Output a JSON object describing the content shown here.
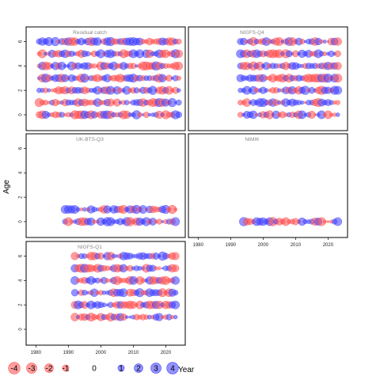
{
  "chart_data": {
    "type": "scatter",
    "kind": "bubble-residuals",
    "ylabel": "Age",
    "xlabel": "Year",
    "colors": {
      "positive": "#3b3bff",
      "negative": "#ff4a4a"
    },
    "panels": [
      {
        "title": "Residual catch",
        "xlim": [
          1977,
          2026
        ],
        "ylim": [
          -1.3,
          7.2
        ],
        "yticks": [
          0,
          2,
          4,
          6
        ],
        "show_xaxis": false,
        "years": [
          1981,
          2024
        ],
        "ages": [
          0,
          1,
          2,
          3,
          4,
          5,
          6
        ],
        "seed": 11
      },
      {
        "title": "NIGFS-Q4",
        "xlim": [
          1977,
          2026
        ],
        "ylim": [
          -1.3,
          7.2
        ],
        "yticks": [],
        "show_xaxis": false,
        "years": [
          1993,
          2023
        ],
        "ages": [
          0,
          1,
          2,
          3,
          4,
          5,
          6
        ],
        "seed": 23
      },
      {
        "title": "UK-BTS-Q3",
        "xlim": [
          1977,
          2026
        ],
        "ylim": [
          -1.3,
          7.2
        ],
        "yticks": [
          0,
          2,
          4,
          6
        ],
        "show_xaxis": false,
        "years": [
          1989,
          2023
        ],
        "ages": [
          0,
          1
        ],
        "seed": 37
      },
      {
        "title": "NIMIK",
        "xlim": [
          1977,
          2026
        ],
        "ylim": [
          -1.3,
          7.2
        ],
        "yticks": [],
        "show_xaxis": true,
        "xticks": [
          1980,
          1990,
          2000,
          2010,
          2020
        ],
        "years": [
          1994,
          2023
        ],
        "ages": [
          0
        ],
        "seed": 41
      },
      {
        "title": "NIGFS-Q1",
        "xlim": [
          1977,
          2026
        ],
        "ylim": [
          -1.3,
          7.2
        ],
        "yticks": [
          0,
          2,
          4,
          6
        ],
        "show_xaxis": true,
        "xticks": [
          1980,
          1990,
          2000,
          2010,
          2020
        ],
        "years": [
          1992,
          2023
        ],
        "ages": [
          1,
          2,
          3,
          4,
          5,
          6
        ],
        "seed": 53
      }
    ],
    "legend": {
      "values": [
        -4,
        -3,
        -2,
        -1,
        0,
        1,
        2,
        3,
        4
      ],
      "labels": [
        "-4",
        "-3",
        "-2",
        "-1",
        "0",
        "1",
        "2",
        "3",
        "4"
      ]
    }
  }
}
